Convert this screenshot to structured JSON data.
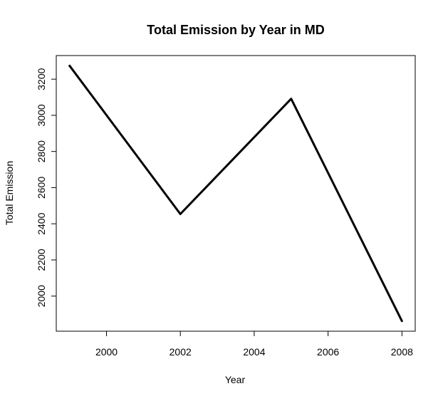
{
  "chart_data": {
    "type": "line",
    "title": "Total Emission by Year in MD",
    "xlabel": "Year",
    "ylabel": "Total Emission",
    "x": [
      1999,
      2002,
      2005,
      2008
    ],
    "series": [
      {
        "values": [
          3274.18,
          2453.92,
          3091.35,
          1862.28
        ]
      }
    ],
    "xlim": [
      1999,
      2008
    ],
    "ylim": [
      1862.28,
      3274.18
    ],
    "x_ticks": [
      "2000",
      "2002",
      "2004",
      "2006",
      "2008"
    ],
    "y_ticks": [
      "2000",
      "2200",
      "2400",
      "2600",
      "2800",
      "3000",
      "3200"
    ],
    "grid": false,
    "line_color": "#000000"
  }
}
